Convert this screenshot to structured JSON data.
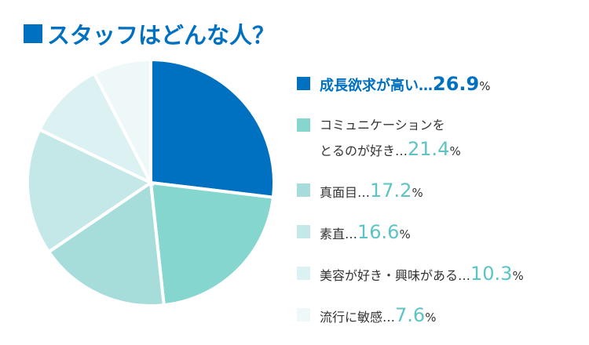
{
  "chart_data": {
    "type": "pie",
    "title": "スタッフはどんな人？",
    "categories": [
      "成長欲求が高い…",
      "コミュニケーションを\nとるのが好き…",
      "真面目…",
      "素直…",
      "美容が好き・興味がある…",
      "流行に敏感…"
    ],
    "values": [
      26.9,
      21.4,
      17.2,
      16.6,
      10.3,
      7.6
    ],
    "unit": "%",
    "colors": [
      "#0070c0",
      "#86d6d0",
      "#a6dddb",
      "#c3e8e7",
      "#dcf1f1",
      "#eef8f8"
    ]
  }
}
